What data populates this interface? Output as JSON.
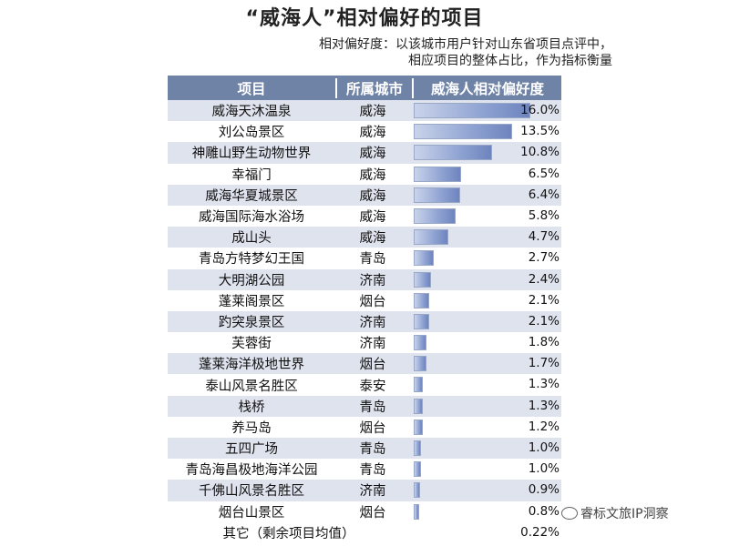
{
  "title": "“威海人”相对偏好的项目",
  "subtitle_line1": "相对偏好度：以该城市用户针对山东省项目点评中，",
  "subtitle_line2": "相应项目的整体占比，作为指标衡量",
  "header": {
    "item": "项目",
    "city": "所属城市",
    "pref": "威海人相对偏好度"
  },
  "watermark": "睿标文旅IP洞察",
  "colors": {
    "header_bg": "#6f83a6",
    "stripe": "#dfe3ee",
    "bar": "#8ea2d2"
  },
  "chart_data": {
    "type": "table",
    "rows": [
      {
        "item": "威海天沐温泉",
        "city": "威海",
        "label": "16.0%",
        "value": 16.0
      },
      {
        "item": "刘公岛景区",
        "city": "威海",
        "label": "13.5%",
        "value": 13.5
      },
      {
        "item": "神雕山野生动物世界",
        "city": "威海",
        "label": "10.8%",
        "value": 10.8
      },
      {
        "item": "幸福门",
        "city": "威海",
        "label": "6.5%",
        "value": 6.5
      },
      {
        "item": "威海华夏城景区",
        "city": "威海",
        "label": "6.4%",
        "value": 6.4
      },
      {
        "item": "威海国际海水浴场",
        "city": "威海",
        "label": "5.8%",
        "value": 5.8
      },
      {
        "item": "成山头",
        "city": "威海",
        "label": "4.7%",
        "value": 4.7
      },
      {
        "item": "青岛方特梦幻王国",
        "city": "青岛",
        "label": "2.7%",
        "value": 2.7
      },
      {
        "item": "大明湖公园",
        "city": "济南",
        "label": "2.4%",
        "value": 2.4
      },
      {
        "item": "蓬莱阁景区",
        "city": "烟台",
        "label": "2.1%",
        "value": 2.1
      },
      {
        "item": "趵突泉景区",
        "city": "济南",
        "label": "2.1%",
        "value": 2.1
      },
      {
        "item": "芙蓉街",
        "city": "济南",
        "label": "1.8%",
        "value": 1.8
      },
      {
        "item": "蓬莱海洋极地世界",
        "city": "烟台",
        "label": "1.7%",
        "value": 1.7
      },
      {
        "item": "泰山风景名胜区",
        "city": "泰安",
        "label": "1.3%",
        "value": 1.3
      },
      {
        "item": "栈桥",
        "city": "青岛",
        "label": "1.3%",
        "value": 1.3
      },
      {
        "item": "养马岛",
        "city": "烟台",
        "label": "1.2%",
        "value": 1.2
      },
      {
        "item": "五四广场",
        "city": "青岛",
        "label": "1.0%",
        "value": 1.0
      },
      {
        "item": "青岛海昌极地海洋公园",
        "city": "青岛",
        "label": "1.0%",
        "value": 1.0
      },
      {
        "item": "千佛山风景名胜区",
        "city": "济南",
        "label": "0.9%",
        "value": 0.9
      },
      {
        "item": "烟台山景区",
        "city": "烟台",
        "label": "0.8%",
        "value": 0.8
      }
    ],
    "other": {
      "item": "其它（剩余项目均值）",
      "label": "0.22%",
      "value": 0.22
    },
    "max_value": 16.0
  }
}
